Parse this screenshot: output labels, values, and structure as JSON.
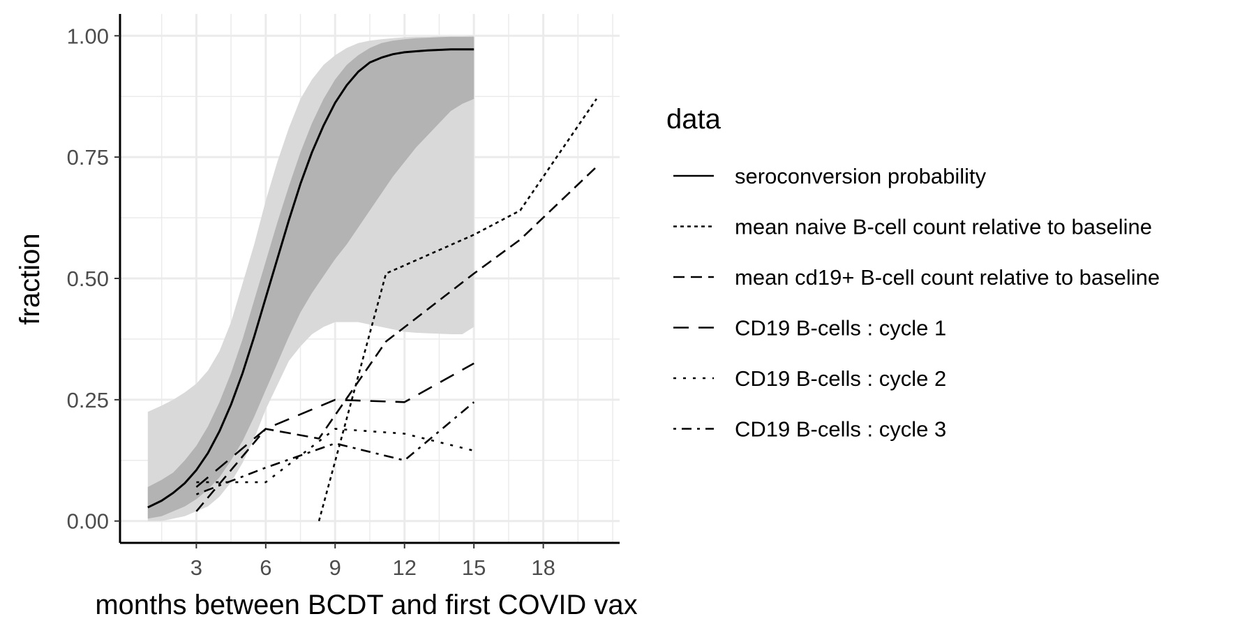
{
  "chart_data": {
    "type": "line",
    "xlabel": "months between BCDT and first COVID vax",
    "ylabel": "fraction",
    "xlim": [
      -0.3,
      21.3
    ],
    "ylim": [
      -0.045,
      1.045
    ],
    "x_ticks": [
      3,
      6,
      9,
      12,
      15,
      18
    ],
    "x_tick_labels": [
      "3",
      "6",
      "9",
      "12",
      "15",
      "18"
    ],
    "y_ticks": [
      0,
      0.25,
      0.5,
      0.75,
      1.0
    ],
    "y_tick_labels": [
      "0.00",
      "0.25",
      "0.50",
      "0.75",
      "1.00"
    ],
    "grid": true,
    "legend": {
      "title": "data",
      "position": "right",
      "entries": [
        {
          "label": "seroconversion probability",
          "dash": "solid"
        },
        {
          "label": "mean naive B-cell count relative to baseline",
          "dash": "dotted"
        },
        {
          "label": "mean cd19+ B-cell count relative to baseline",
          "dash": "dashed"
        },
        {
          "label": "CD19 B-cells : cycle 1",
          "dash": "longdash"
        },
        {
          "label": "CD19 B-cells : cycle 2",
          "dash": "dotted-sparse"
        },
        {
          "label": "CD19 B-cells : cycle 3",
          "dash": "dotdash"
        }
      ]
    },
    "ribbons": [
      {
        "name": "outer",
        "color": "#d9d9d9",
        "x": [
          0.9,
          1.5,
          2.0,
          2.5,
          3.0,
          3.5,
          4.0,
          4.5,
          5.0,
          5.5,
          6.0,
          6.5,
          7.0,
          7.5,
          8.0,
          8.5,
          9.0,
          9.5,
          10.0,
          10.5,
          11.0,
          11.5,
          12.0,
          12.5,
          13.0,
          13.5,
          14.0,
          14.5,
          15.0
        ],
        "upper": [
          0.225,
          0.238,
          0.25,
          0.265,
          0.283,
          0.31,
          0.35,
          0.41,
          0.49,
          0.57,
          0.66,
          0.74,
          0.81,
          0.87,
          0.91,
          0.94,
          0.96,
          0.975,
          0.985,
          0.99,
          0.993,
          0.995,
          0.997,
          0.998,
          0.998,
          0.999,
          0.999,
          0.999,
          1.0
        ],
        "lower": [
          0.0,
          0.0,
          0.005,
          0.01,
          0.02,
          0.03,
          0.05,
          0.08,
          0.12,
          0.17,
          0.23,
          0.28,
          0.33,
          0.36,
          0.385,
          0.4,
          0.41,
          0.41,
          0.41,
          0.405,
          0.4,
          0.395,
          0.39,
          0.388,
          0.387,
          0.386,
          0.385,
          0.385,
          0.4
        ]
      },
      {
        "name": "inner",
        "color": "#b3b3b3",
        "x": [
          0.9,
          1.5,
          2.0,
          2.5,
          3.0,
          3.5,
          4.0,
          4.5,
          5.0,
          5.5,
          6.0,
          6.5,
          7.0,
          7.5,
          8.0,
          8.5,
          9.0,
          9.5,
          10.0,
          10.5,
          11.0,
          11.5,
          12.0,
          12.5,
          13.0,
          13.5,
          14.0,
          14.5,
          15.0
        ],
        "upper": [
          0.07,
          0.085,
          0.1,
          0.125,
          0.155,
          0.195,
          0.245,
          0.305,
          0.375,
          0.455,
          0.535,
          0.615,
          0.69,
          0.76,
          0.82,
          0.87,
          0.91,
          0.94,
          0.96,
          0.975,
          0.985,
          0.99,
          0.993,
          0.995,
          0.996,
          0.997,
          0.998,
          0.998,
          0.998
        ],
        "lower": [
          0.005,
          0.01,
          0.02,
          0.03,
          0.045,
          0.065,
          0.09,
          0.125,
          0.165,
          0.215,
          0.27,
          0.325,
          0.38,
          0.43,
          0.47,
          0.505,
          0.54,
          0.57,
          0.605,
          0.64,
          0.675,
          0.71,
          0.74,
          0.77,
          0.795,
          0.82,
          0.845,
          0.86,
          0.87
        ]
      }
    ],
    "series": [
      {
        "name": "seroconversion probability",
        "dash": "solid",
        "x": [
          0.9,
          1.5,
          2.0,
          2.5,
          3.0,
          3.5,
          4.0,
          4.5,
          5.0,
          5.5,
          6.0,
          6.5,
          7.0,
          7.5,
          8.0,
          8.5,
          9.0,
          9.5,
          10.0,
          10.5,
          11.0,
          11.5,
          12.0,
          12.5,
          13.0,
          13.5,
          14.0,
          14.5,
          15.0
        ],
        "y": [
          0.028,
          0.042,
          0.058,
          0.078,
          0.105,
          0.14,
          0.185,
          0.24,
          0.305,
          0.38,
          0.46,
          0.54,
          0.62,
          0.695,
          0.76,
          0.815,
          0.862,
          0.898,
          0.926,
          0.945,
          0.955,
          0.962,
          0.966,
          0.968,
          0.97,
          0.971,
          0.972,
          0.972,
          0.972
        ]
      },
      {
        "name": "mean naive B-cell count relative to baseline",
        "dash": "dotted",
        "x": [
          8.3,
          11.2,
          15.0,
          17.0,
          20.3
        ],
        "y": [
          0.0,
          0.51,
          0.59,
          0.64,
          0.87
        ]
      },
      {
        "name": "mean cd19+ B-cell count relative to baseline",
        "dash": "dashed",
        "x": [
          3.0,
          6.0,
          8.3,
          11.2,
          15.0,
          17.0,
          20.3
        ],
        "y": [
          0.02,
          0.19,
          0.17,
          0.37,
          0.51,
          0.58,
          0.73
        ]
      },
      {
        "name": "CD19 B-cells : cycle 1",
        "dash": "longdash",
        "x": [
          3.0,
          6.0,
          9.0,
          12.0,
          15.0
        ],
        "y": [
          0.07,
          0.19,
          0.25,
          0.245,
          0.325
        ]
      },
      {
        "name": "CD19 B-cells : cycle 2",
        "dash": "dotted-sparse",
        "x": [
          3.0,
          6.0,
          9.0,
          12.0,
          15.0
        ],
        "y": [
          0.08,
          0.08,
          0.19,
          0.18,
          0.145
        ]
      },
      {
        "name": "CD19 B-cells : cycle 3",
        "dash": "dotdash",
        "x": [
          3.0,
          6.0,
          9.0,
          12.0,
          15.0
        ],
        "y": [
          0.055,
          0.11,
          0.16,
          0.125,
          0.245
        ]
      }
    ]
  }
}
